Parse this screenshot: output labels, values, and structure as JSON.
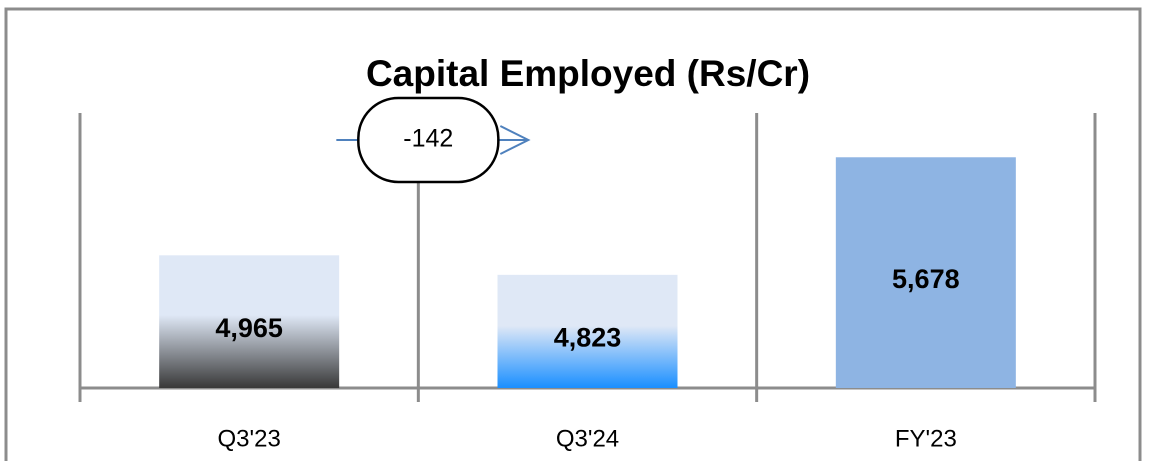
{
  "chart_data": {
    "type": "bar",
    "title": "Capital Employed (Rs/Cr)",
    "categories": [
      "Q3'23",
      "Q3'24",
      "FY'23"
    ],
    "values": [
      4965,
      4823,
      5678
    ],
    "value_labels": [
      "4,965",
      "4,823",
      "5,678"
    ],
    "colors": [
      [
        "#dfe8f6",
        "#383838"
      ],
      [
        "#dfe8f6",
        "#1a8fff"
      ],
      [
        "#8eb4e3",
        "#8eb4e3"
      ]
    ],
    "ylim": [
      4000,
      6000
    ],
    "annotation": "-142"
  }
}
